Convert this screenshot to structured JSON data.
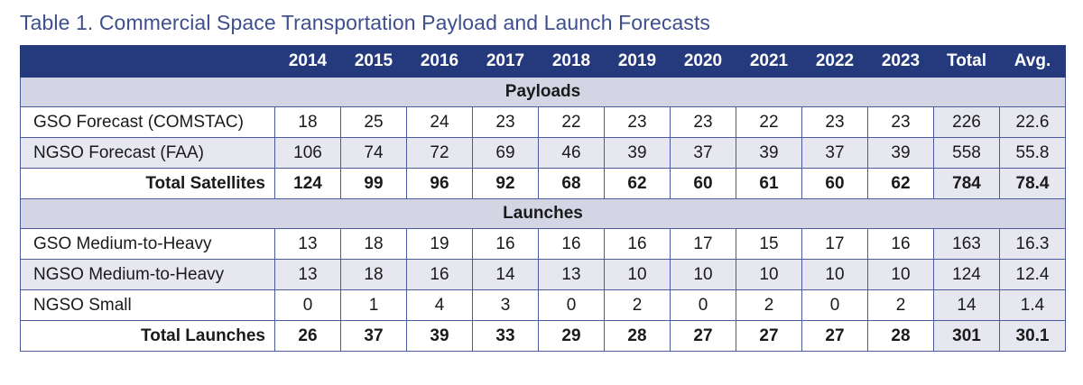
{
  "caption": "Table 1. Commercial Space Transportation Payload and Launch Forecasts",
  "header": [
    "",
    "2014",
    "2015",
    "2016",
    "2017",
    "2018",
    "2019",
    "2020",
    "2021",
    "2022",
    "2023",
    "Total",
    "Avg."
  ],
  "sections": [
    {
      "title": "Payloads",
      "rows": [
        {
          "label": "GSO Forecast (COMSTAC)",
          "total": false,
          "values": [
            "18",
            "25",
            "24",
            "23",
            "22",
            "23",
            "23",
            "22",
            "23",
            "23",
            "226",
            "22.6"
          ]
        },
        {
          "label": "NGSO Forecast (FAA)",
          "total": false,
          "values": [
            "106",
            "74",
            "72",
            "69",
            "46",
            "39",
            "37",
            "39",
            "37",
            "39",
            "558",
            "55.8"
          ]
        },
        {
          "label": "Total Satellites",
          "total": true,
          "values": [
            "124",
            "99",
            "96",
            "92",
            "68",
            "62",
            "60",
            "61",
            "60",
            "62",
            "784",
            "78.4"
          ]
        }
      ]
    },
    {
      "title": "Launches",
      "rows": [
        {
          "label": "GSO Medium-to-Heavy",
          "total": false,
          "values": [
            "13",
            "18",
            "19",
            "16",
            "16",
            "16",
            "17",
            "15",
            "17",
            "16",
            "163",
            "16.3"
          ]
        },
        {
          "label": "NGSO Medium-to-Heavy",
          "total": false,
          "values": [
            "13",
            "18",
            "16",
            "14",
            "13",
            "10",
            "10",
            "10",
            "10",
            "10",
            "124",
            "12.4"
          ]
        },
        {
          "label": "NGSO Small",
          "total": false,
          "values": [
            "0",
            "1",
            "4",
            "3",
            "0",
            "2",
            "0",
            "2",
            "0",
            "2",
            "14",
            "1.4"
          ]
        },
        {
          "label": "Total Launches",
          "total": true,
          "values": [
            "26",
            "37",
            "39",
            "33",
            "29",
            "28",
            "27",
            "27",
            "27",
            "28",
            "301",
            "30.1"
          ]
        }
      ]
    }
  ]
}
